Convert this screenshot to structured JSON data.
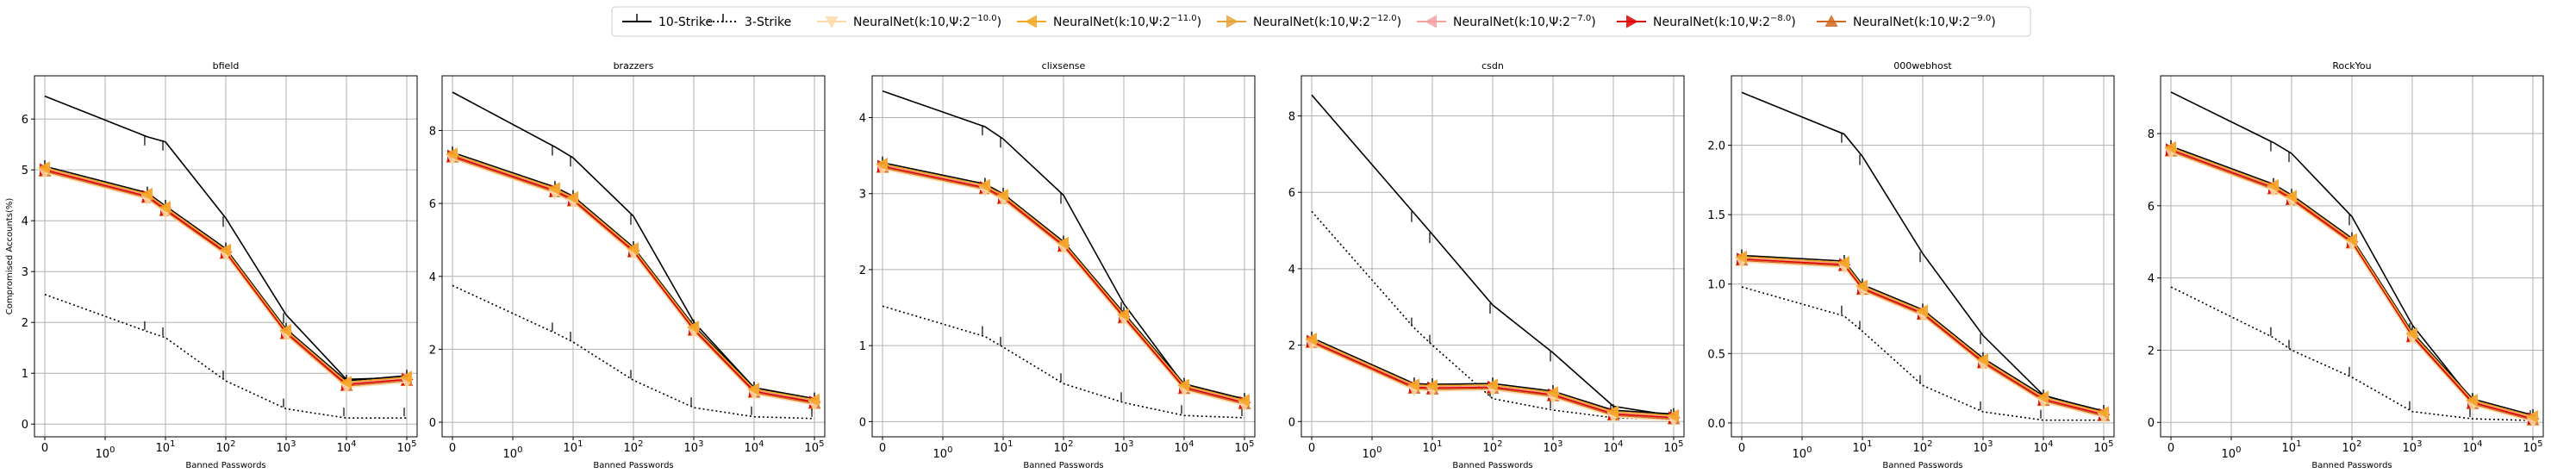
{
  "chart_data": {
    "type": "line",
    "legend": {
      "placement": "top-center",
      "entries": [
        {
          "name": "10-Strike",
          "color": "#000000",
          "dash": "solid",
          "marker": "tick"
        },
        {
          "name": "3-Strike",
          "color": "#000000",
          "dash": "dotted",
          "marker": "tick"
        },
        {
          "name": "NeuralNet(k:10,Ψ:2",
          "exp": "−10.0",
          "suffix": ")",
          "color": "#fdd9a8",
          "dash": "solid",
          "marker": "tri-down"
        },
        {
          "name": "NeuralNet(k:10,Ψ:2",
          "exp": "−11.0",
          "suffix": ")",
          "color": "#f5a623",
          "dash": "solid",
          "marker": "tri-left"
        },
        {
          "name": "NeuralNet(k:10,Ψ:2",
          "exp": "−12.0",
          "suffix": ")",
          "color": "#e8a33a",
          "dash": "solid",
          "marker": "tri-right"
        },
        {
          "name": "NeuralNet(k:10,Ψ:2",
          "exp": "−7.0",
          "suffix": ")",
          "color": "#f4a0a0",
          "dash": "solid",
          "marker": "tri-left"
        },
        {
          "name": "NeuralNet(k:10,Ψ:2",
          "exp": "−8.0",
          "suffix": ")",
          "color": "#e00000",
          "dash": "solid",
          "marker": "tri-right"
        },
        {
          "name": "NeuralNet(k:10,Ψ:2",
          "exp": "−9.0",
          "suffix": ")",
          "color": "#d2691e",
          "dash": "solid",
          "marker": "tri-up"
        }
      ]
    },
    "x_ticks": [
      {
        "value": 0,
        "label": "0",
        "exp": ""
      },
      {
        "value": 1,
        "label": "10",
        "exp": "0"
      },
      {
        "value": 10,
        "label": "10",
        "exp": "1"
      },
      {
        "value": 100,
        "label": "10",
        "exp": "2"
      },
      {
        "value": 1000,
        "label": "10",
        "exp": "3"
      },
      {
        "value": 10000,
        "label": "10",
        "exp": "4"
      },
      {
        "value": 100000,
        "label": "10",
        "exp": "5"
      }
    ],
    "x": [
      0,
      5,
      10,
      100,
      1000,
      10000,
      100000
    ],
    "xlabel": "Banned Passwords",
    "ylabel": "Compromised Accounts(%)",
    "xscale": "symlog",
    "grid": true,
    "panels": [
      {
        "title": "bfield",
        "ylim": [
          -0.25,
          6.85
        ],
        "yticks": [
          0,
          1,
          2,
          3,
          4,
          5,
          6
        ],
        "tick_labels": [
          "0",
          "1",
          "2",
          "3",
          "4",
          "5",
          "6"
        ],
        "ten_strike": [
          6.45,
          5.65,
          5.55,
          4.05,
          2.15,
          0.88,
          0.92
        ],
        "three_strike": [
          2.55,
          1.82,
          1.7,
          0.85,
          0.3,
          0.12,
          0.12
        ],
        "neural": [
          5.0,
          4.48,
          4.22,
          3.38,
          1.8,
          0.78,
          0.88
        ]
      },
      {
        "title": "brazzers",
        "ylim": [
          -0.4,
          9.5
        ],
        "yticks": [
          0,
          2,
          4,
          6,
          8
        ],
        "tick_labels": [
          "0",
          "2",
          "4",
          "6",
          "8"
        ],
        "ten_strike": [
          9.05,
          7.55,
          7.25,
          5.65,
          2.75,
          0.95,
          0.55
        ],
        "three_strike": [
          3.75,
          2.45,
          2.2,
          1.15,
          0.4,
          0.15,
          0.1
        ],
        "neural": [
          7.3,
          6.35,
          6.1,
          4.7,
          2.55,
          0.85,
          0.55
        ]
      },
      {
        "title": "clixsense",
        "ylim": [
          -0.2,
          4.55
        ],
        "yticks": [
          0,
          1,
          2,
          3,
          4
        ],
        "tick_labels": [
          "0",
          "1",
          "2",
          "3",
          "4"
        ],
        "ten_strike": [
          4.35,
          3.88,
          3.72,
          2.98,
          1.55,
          0.48,
          0.3
        ],
        "three_strike": [
          1.52,
          1.12,
          0.98,
          0.5,
          0.25,
          0.08,
          0.05
        ],
        "neural": [
          3.36,
          3.08,
          2.95,
          2.32,
          1.38,
          0.45,
          0.25
        ]
      },
      {
        "title": "csdn",
        "ylim": [
          -0.4,
          9.05
        ],
        "yticks": [
          0,
          2,
          4,
          6,
          8
        ],
        "tick_labels": [
          "0",
          "2",
          "4",
          "6",
          "8"
        ],
        "ten_strike": [
          8.55,
          5.45,
          4.9,
          3.05,
          1.8,
          0.4,
          0.15
        ],
        "three_strike": [
          5.5,
          2.45,
          2.0,
          0.6,
          0.3,
          0.1,
          0.05
        ],
        "neural": [
          2.1,
          0.9,
          0.88,
          0.9,
          0.7,
          0.2,
          0.1
        ]
      },
      {
        "title": "000webhost",
        "ylim": [
          -0.1,
          2.5
        ],
        "yticks": [
          0.0,
          0.5,
          1.0,
          1.5,
          2.0
        ],
        "tick_labels": [
          "0.0",
          "0.5",
          "1.0",
          "1.5",
          "2.0"
        ],
        "ten_strike": [
          2.38,
          2.08,
          1.92,
          1.22,
          0.63,
          0.2,
          0.08
        ],
        "three_strike": [
          0.98,
          0.77,
          0.66,
          0.27,
          0.08,
          0.02,
          0.02
        ],
        "neural": [
          1.18,
          1.14,
          0.97,
          0.79,
          0.44,
          0.17,
          0.06
        ]
      },
      {
        "title": "RockYou",
        "ylim": [
          -0.4,
          9.6
        ],
        "yticks": [
          0,
          2,
          4,
          6,
          8
        ],
        "tick_labels": [
          "0",
          "2",
          "4",
          "6",
          "8"
        ],
        "ten_strike": [
          9.15,
          7.75,
          7.45,
          5.7,
          2.7,
          0.6,
          0.15
        ],
        "three_strike": [
          3.75,
          2.35,
          2.0,
          1.25,
          0.3,
          0.1,
          0.05
        ],
        "neural": [
          7.55,
          6.5,
          6.2,
          5.0,
          2.4,
          0.55,
          0.1
        ]
      }
    ]
  }
}
